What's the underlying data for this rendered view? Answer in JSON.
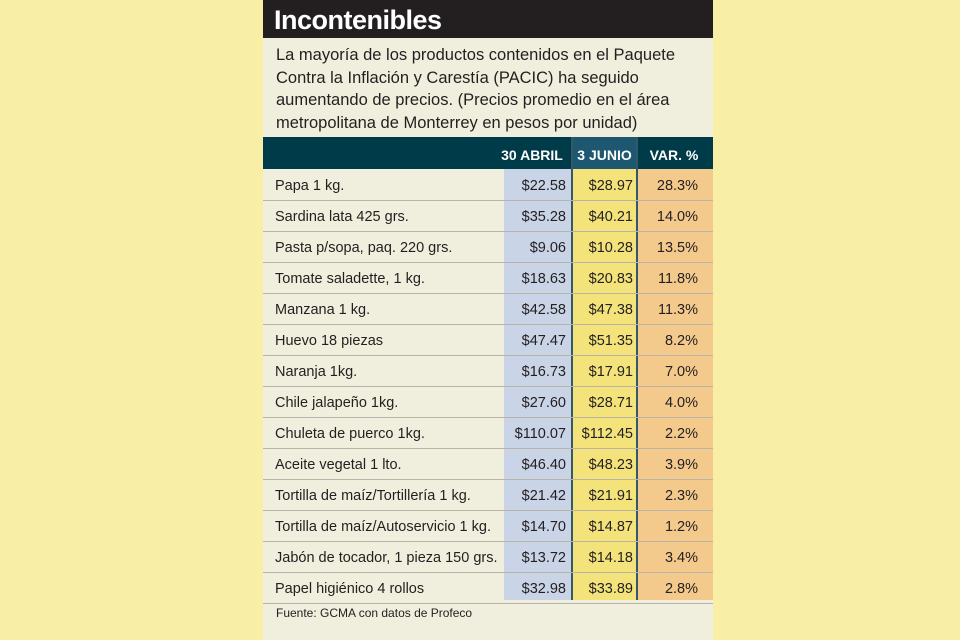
{
  "title": "Incontenibles",
  "subtitle": "La mayoría de los productos contenidos en el Paquete Contra la Inflación y Carestía (PACIC) ha seguido aumentando de precios. (Precios promedio en el área metropolitana de Monterrey en pesos por unidad)",
  "columns": {
    "april": "30 ABRIL",
    "june": "3 JUNIO",
    "var": "VAR. %"
  },
  "rows": [
    {
      "product": "Papa 1 kg.",
      "april": "$22.58",
      "june": "$28.97",
      "var": "28.3%"
    },
    {
      "product": "Sardina lata 425 grs.",
      "april": "$35.28",
      "june": "$40.21",
      "var": "14.0%"
    },
    {
      "product": "Pasta p/sopa, paq. 220 grs.",
      "april": "$9.06",
      "june": "$10.28",
      "var": "13.5%"
    },
    {
      "product": "Tomate saladette, 1 kg.",
      "april": "$18.63",
      "june": "$20.83",
      "var": "11.8%"
    },
    {
      "product": "Manzana 1 kg.",
      "april": "$42.58",
      "june": "$47.38",
      "var": "11.3%"
    },
    {
      "product": "Huevo 18 piezas",
      "april": "$47.47",
      "june": "$51.35",
      "var": "8.2%"
    },
    {
      "product": "Naranja 1kg.",
      "april": "$16.73",
      "june": "$17.91",
      "var": "7.0%"
    },
    {
      "product": "Chile jalapeño 1kg.",
      "april": "$27.60",
      "june": "$28.71",
      "var": "4.0%"
    },
    {
      "product": "Chuleta de puerco 1kg.",
      "april": "$110.07",
      "june": "$112.45",
      "var": "2.2%"
    },
    {
      "product": "Aceite vegetal 1 lto.",
      "april": "$46.40",
      "june": "$48.23",
      "var": "3.9%"
    },
    {
      "product": "Tortilla de maíz/Tortillería 1 kg.",
      "april": "$21.42",
      "june": "$21.91",
      "var": "2.3%"
    },
    {
      "product": "Tortilla de maíz/Autoservicio 1 kg.",
      "april": "$14.70",
      "june": "$14.87",
      "var": "1.2%"
    },
    {
      "product": "Jabón de tocador, 1 pieza 150 grs.",
      "april": "$13.72",
      "june": "$14.18",
      "var": "3.4%"
    },
    {
      "product": "Papel higiénico 4 rollos",
      "april": "$32.98",
      "june": "$33.89",
      "var": "2.8%"
    }
  ],
  "source": "Fuente: GCMA con datos de Profeco",
  "colors": {
    "background": "#f9eea6",
    "card": "#f0eedc",
    "title_bar": "#231f20",
    "header_bar": "#003b4a",
    "april_column": "#c9d4e7",
    "june_column": "#f3e37a",
    "var_column": "#f3c98c"
  }
}
